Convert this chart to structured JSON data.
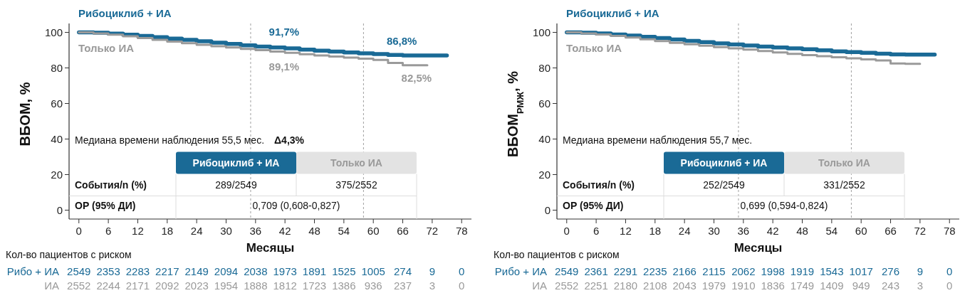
{
  "chart_data": [
    {
      "type": "step",
      "ylabel": "ВБОМ, %",
      "xlabel": "Месяцы",
      "xlim": [
        -2,
        80
      ],
      "xticks": [
        0,
        6,
        12,
        18,
        24,
        30,
        36,
        42,
        48,
        54,
        60,
        66,
        72,
        78
      ],
      "ylim": [
        -5,
        105
      ],
      "yticks": [
        0,
        20,
        40,
        60,
        80,
        100
      ],
      "series": [
        {
          "name": "Рибоциклиб + ИА",
          "color": "#1a6a96",
          "x": [
            0,
            3,
            6,
            9,
            12,
            15,
            18,
            21,
            24,
            27,
            30,
            33,
            36,
            39,
            42,
            45,
            48,
            51,
            54,
            57,
            60,
            63,
            66,
            69,
            72,
            75
          ],
          "values": [
            100,
            99.8,
            99.3,
            98.7,
            98,
            97.3,
            96.5,
            95.8,
            95,
            94.2,
            93.5,
            92.7,
            92,
            91.5,
            91,
            90.3,
            89.7,
            89.2,
            88.7,
            88.2,
            87.8,
            87.3,
            87,
            87,
            87,
            87
          ]
        },
        {
          "name": "Только ИА",
          "color": "#9a9a9a",
          "x": [
            0,
            3,
            6,
            9,
            12,
            15,
            18,
            21,
            24,
            27,
            30,
            33,
            36,
            39,
            42,
            45,
            48,
            51,
            54,
            57,
            60,
            63,
            66,
            69,
            71
          ],
          "values": [
            100,
            99.4,
            98.7,
            97.8,
            96.8,
            95.8,
            94.8,
            93.9,
            93,
            92.2,
            91.5,
            90.7,
            90,
            89.2,
            88.5,
            87.7,
            87,
            86.4,
            85.8,
            85.2,
            84.5,
            82.8,
            81.5,
            81.5,
            81.5
          ]
        }
      ],
      "ref_lines": [
        {
          "axis": "x",
          "value": 35,
          "line_style": "dashed"
        },
        {
          "axis": "x",
          "value": 58,
          "line_style": "dashed"
        }
      ],
      "annotations": [
        {
          "text": "91,7%",
          "x": 36,
          "y": 91.7
        },
        {
          "text": "89,1%",
          "x": 36,
          "y": 89.1
        },
        {
          "text": "86,8%",
          "x": 60,
          "y": 86.8
        },
        {
          "text": "82,5%",
          "x": 63,
          "y": 82.5
        },
        "Медиана времени наблюдения 55,5 мес.",
        "Рибоциклиб + ИА",
        "Только ИА",
        "События/n (%)",
        "289/2549",
        "375/2552",
        "ОР (95% ДИ)",
        "0,709 (0,608-0,827)",
        "Кол-во пациентов с риском",
        "Рибо + ИА",
        "2549",
        "2353",
        "2283",
        "2217",
        "2149",
        "2094",
        "2038",
        "1973",
        "1891",
        "1525",
        "1005",
        "274",
        "9",
        "0",
        "ИА",
        "2552",
        "2244",
        "2171",
        "2092",
        "2023",
        "1954",
        "1888",
        "1812",
        "1723",
        "1386",
        "936",
        "237",
        "3",
        "0",
        "Δ4,3%"
      ]
    },
    {
      "type": "step",
      "ylabel": "ВБОМ$_{РМЖ}$, %",
      "xlabel": "Месяцы",
      "xlim": [
        -2,
        80
      ],
      "xticks": [
        0,
        6,
        12,
        18,
        24,
        30,
        36,
        42,
        48,
        54,
        60,
        66,
        72,
        78
      ],
      "ylim": [
        -5,
        105
      ],
      "yticks": [
        0,
        20,
        40,
        60,
        80,
        100
      ],
      "series": [
        {
          "name": "Рибоциклиб + ИА",
          "color": "#1a6a96",
          "x": [
            0,
            3,
            6,
            9,
            12,
            15,
            18,
            21,
            24,
            27,
            30,
            33,
            36,
            39,
            42,
            45,
            48,
            51,
            54,
            57,
            60,
            63,
            66,
            69,
            72,
            75
          ],
          "values": [
            100,
            99.8,
            99.4,
            98.8,
            98.2,
            97.5,
            96.8,
            96,
            95.2,
            94.5,
            93.8,
            93.2,
            92.6,
            92,
            91.5,
            91,
            90.5,
            89.9,
            89.3,
            88.9,
            88.5,
            88,
            87.6,
            87.5,
            87.5,
            87.5
          ]
        },
        {
          "name": "Только ИА",
          "color": "#9a9a9a",
          "x": [
            0,
            3,
            6,
            9,
            12,
            15,
            18,
            21,
            24,
            27,
            30,
            33,
            36,
            39,
            42,
            45,
            48,
            51,
            54,
            57,
            60,
            63,
            66,
            69,
            72
          ],
          "values": [
            100,
            99.4,
            98.8,
            98,
            97.1,
            96.1,
            95.1,
            94.1,
            93.3,
            92.5,
            91.7,
            91,
            90.3,
            89.5,
            88.7,
            87.9,
            87.2,
            86.6,
            86,
            85.4,
            84.8,
            84.2,
            82.5,
            82.3,
            82.3
          ]
        }
      ],
      "ref_lines": [
        {
          "axis": "x",
          "value": 35,
          "line_style": "dashed"
        },
        {
          "axis": "x",
          "value": 58,
          "line_style": "dashed"
        }
      ],
      "annotations": [
        "Медиана времени наблюдения 55,7 мес.",
        "Рибоциклиб + ИА",
        "Только ИА",
        "События/n (%)",
        "252/2549",
        "331/2552",
        "ОР (95% ДИ)",
        "0,699 (0,594-0,824)",
        "Кол-во пациентов с риском",
        "Рибо + ИА",
        "2549",
        "2361",
        "2291",
        "2235",
        "2166",
        "2115",
        "2062",
        "1998",
        "1919",
        "1543",
        "1017",
        "276",
        "9",
        "0",
        "ИА",
        "2552",
        "2251",
        "2180",
        "2108",
        "2043",
        "1979",
        "1910",
        "1836",
        "1749",
        "1409",
        "949",
        "243",
        "3",
        "0"
      ]
    }
  ]
}
